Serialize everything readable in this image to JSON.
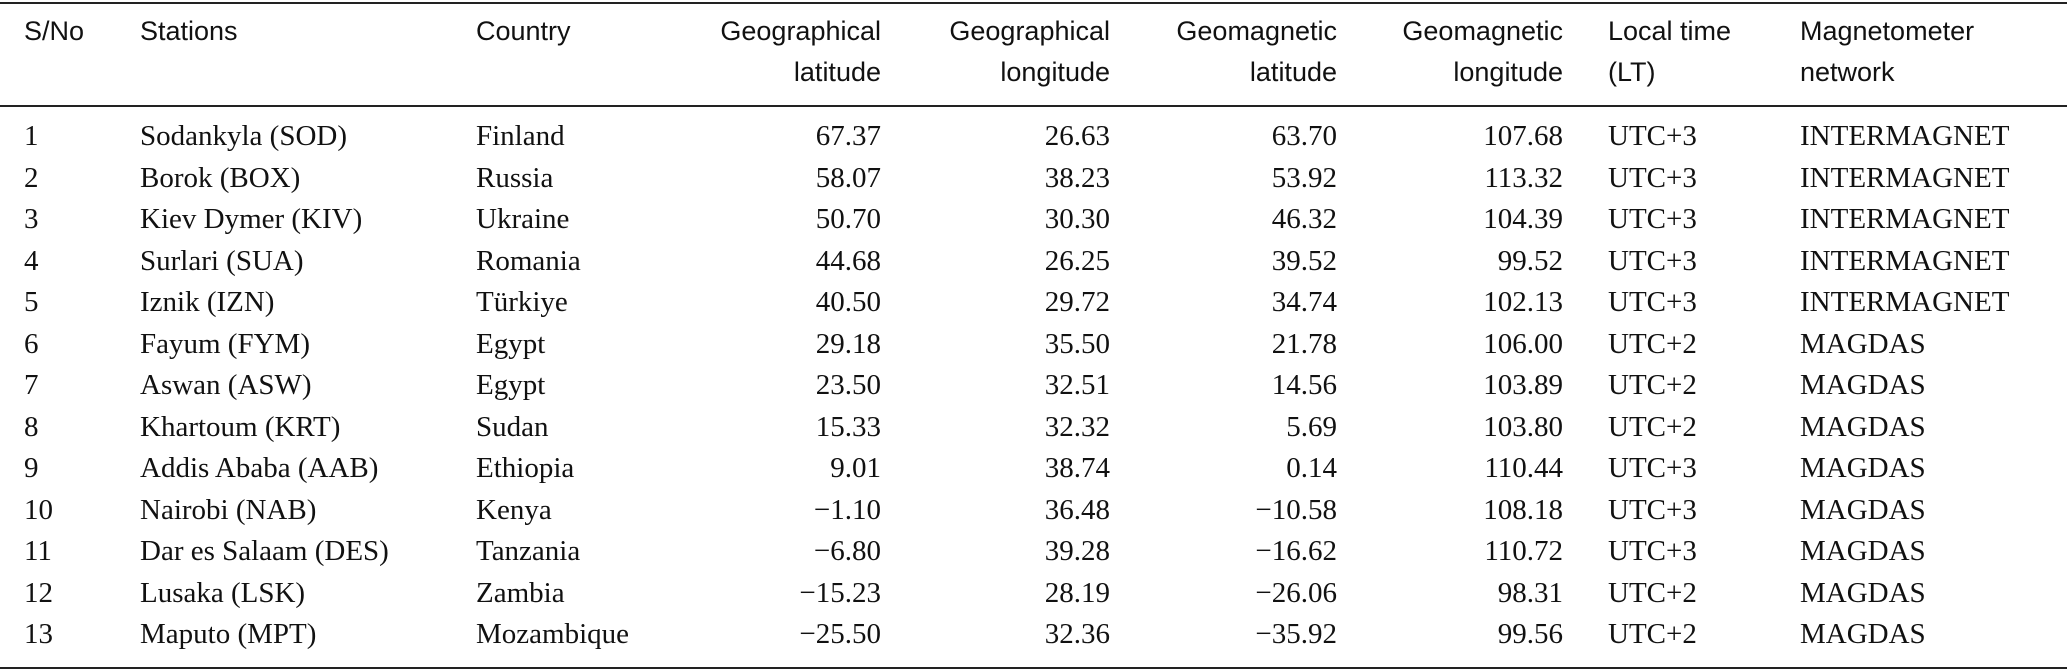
{
  "table": {
    "header": [
      [
        "S/No"
      ],
      [
        "Stations"
      ],
      [
        "Country"
      ],
      [
        "Geographical",
        "latitude"
      ],
      [
        "Geographical",
        "longitude"
      ],
      [
        "Geomagnetic",
        "latitude"
      ],
      [
        "Geomagnetic",
        "longitude"
      ],
      [
        "Local time",
        "(LT)"
      ],
      [
        "Magnetometer",
        "network"
      ]
    ],
    "rows": [
      [
        "1",
        "Sodankyla (SOD)",
        "Finland",
        "67.37",
        "26.63",
        "63.70",
        "107.68",
        "UTC+3",
        "INTERMAGNET"
      ],
      [
        "2",
        "Borok (BOX)",
        "Russia",
        "58.07",
        "38.23",
        "53.92",
        "113.32",
        "UTC+3",
        "INTERMAGNET"
      ],
      [
        "3",
        "Kiev Dymer (KIV)",
        "Ukraine",
        "50.70",
        "30.30",
        "46.32",
        "104.39",
        "UTC+3",
        "INTERMAGNET"
      ],
      [
        "4",
        "Surlari (SUA)",
        "Romania",
        "44.68",
        "26.25",
        "39.52",
        "99.52",
        "UTC+3",
        "INTERMAGNET"
      ],
      [
        "5",
        "Iznik (IZN)",
        "Türkiye",
        "40.50",
        "29.72",
        "34.74",
        "102.13",
        "UTC+3",
        "INTERMAGNET"
      ],
      [
        "6",
        "Fayum (FYM)",
        "Egypt",
        "29.18",
        "35.50",
        "21.78",
        "106.00",
        "UTC+2",
        "MAGDAS"
      ],
      [
        "7",
        "Aswan (ASW)",
        "Egypt",
        "23.50",
        "32.51",
        "14.56",
        "103.89",
        "UTC+2",
        "MAGDAS"
      ],
      [
        "8",
        "Khartoum (KRT)",
        "Sudan",
        "15.33",
        "32.32",
        "5.69",
        "103.80",
        "UTC+2",
        "MAGDAS"
      ],
      [
        "9",
        "Addis Ababa (AAB)",
        "Ethiopia",
        "9.01",
        "38.74",
        "0.14",
        "110.44",
        "UTC+3",
        "MAGDAS"
      ],
      [
        "10",
        "Nairobi (NAB)",
        "Kenya",
        "−1.10",
        "36.48",
        "−10.58",
        "108.18",
        "UTC+3",
        "MAGDAS"
      ],
      [
        "11",
        "Dar es Salaam (DES)",
        "Tanzania",
        "−6.80",
        "39.28",
        "−16.62",
        "110.72",
        "UTC+3",
        "MAGDAS"
      ],
      [
        "12",
        "Lusaka (LSK)",
        "Zambia",
        "−15.23",
        "28.19",
        "−26.06",
        "98.31",
        "UTC+2",
        "MAGDAS"
      ],
      [
        "13",
        "Maputo (MPT)",
        "Mozambique",
        "−25.50",
        "32.36",
        "−35.92",
        "99.56",
        "UTC+2",
        "MAGDAS"
      ]
    ]
  }
}
